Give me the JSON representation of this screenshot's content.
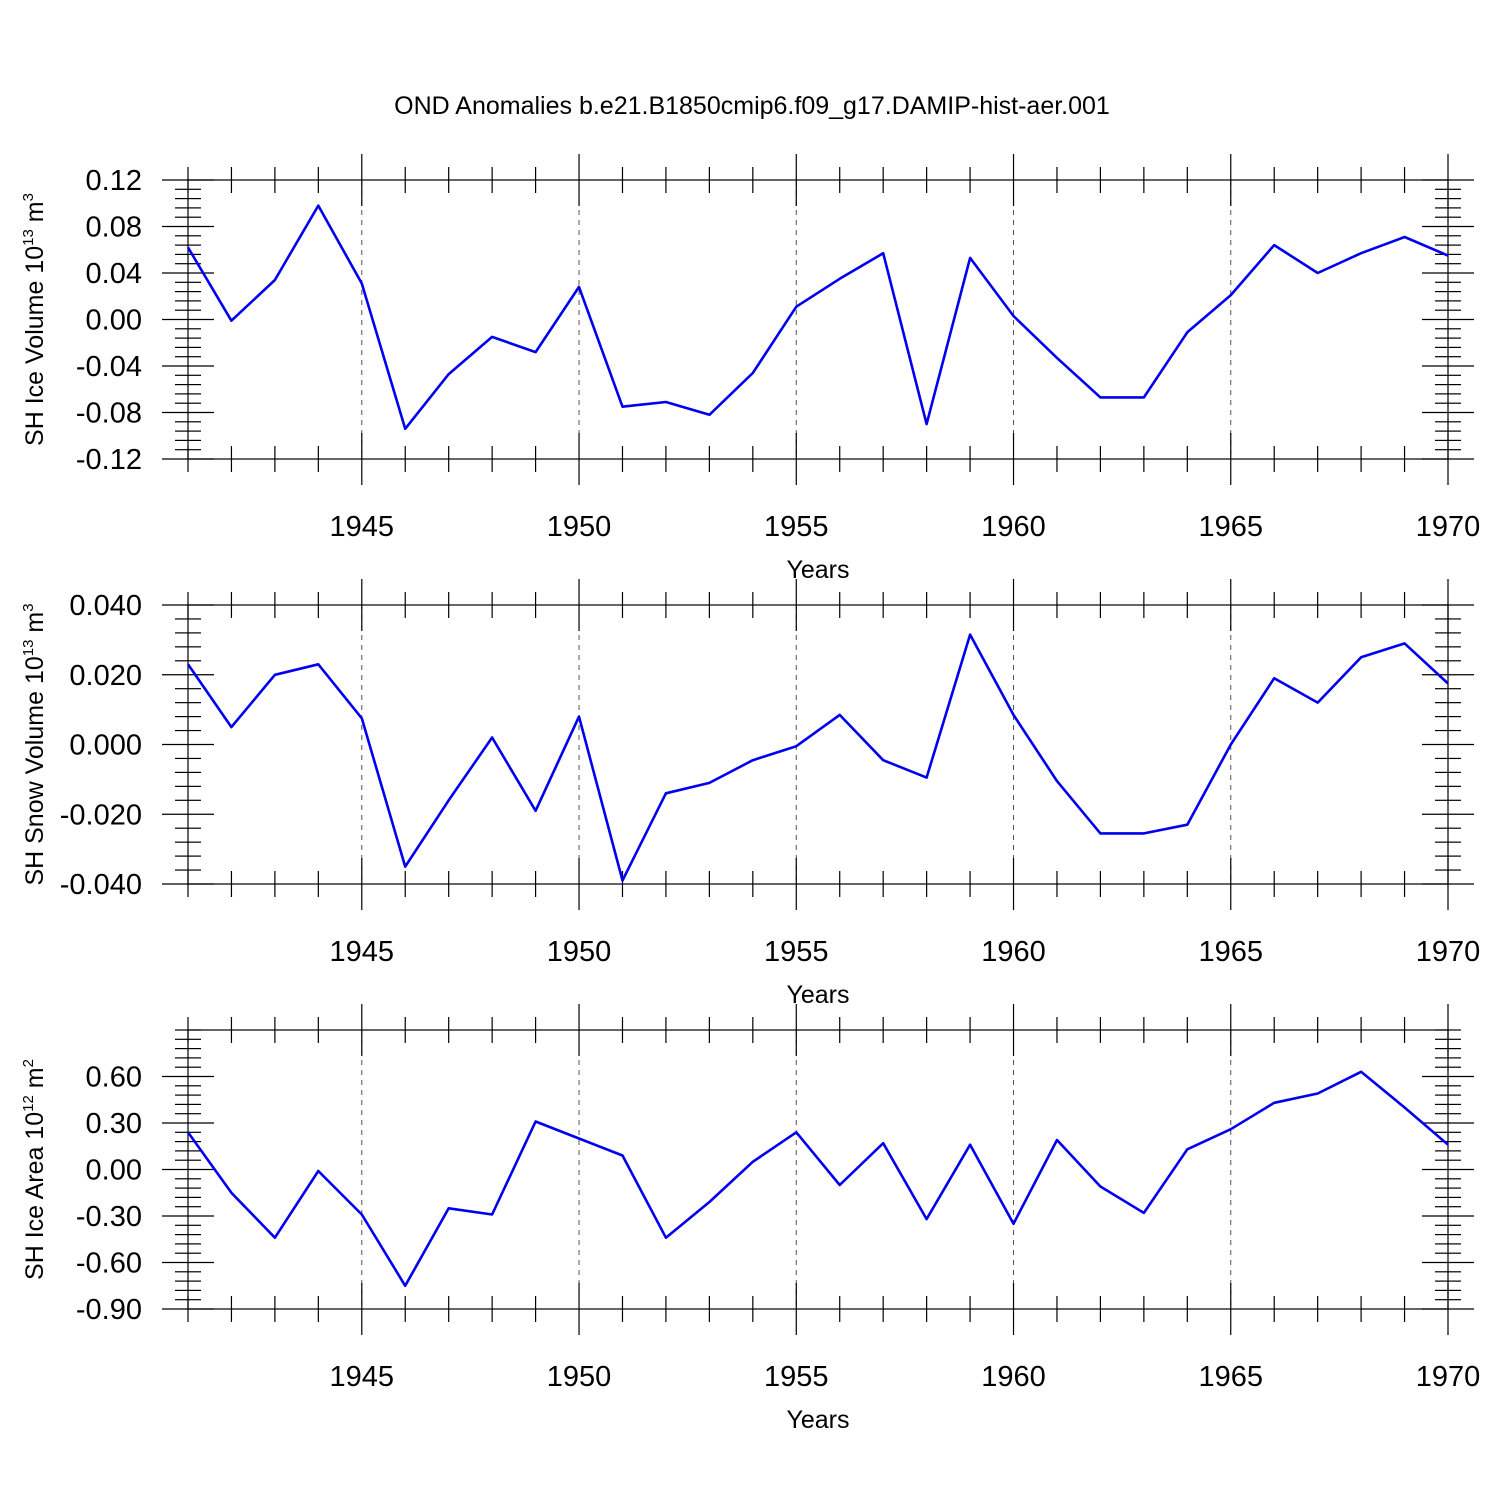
{
  "figure": {
    "title": "OND Anomalies b.e21.B1850cmip6.f09_g17.DAMIP-hist-aer.001"
  },
  "chart_data": [
    {
      "type": "line",
      "xlabel": "Years",
      "ylabel": {
        "text": "SH Ice Volume 10",
        "sup": "13",
        "unit": " m",
        "unit_sup": "3"
      },
      "xlim": [
        1941,
        1970
      ],
      "ylim": [
        -0.12,
        0.12
      ],
      "yticks": [
        "0.12",
        "0.08",
        "0.04",
        "0.00",
        "-0.04",
        "-0.08",
        "-0.12"
      ],
      "ytick_values": [
        0.12,
        0.08,
        0.04,
        0.0,
        -0.04,
        -0.08,
        -0.12
      ],
      "ytick_minor_step": 0.008,
      "xticks": [
        "1945",
        "1950",
        "1955",
        "1960",
        "1965",
        "1970"
      ],
      "xtick_values": [
        1945,
        1950,
        1955,
        1960,
        1965,
        1970
      ],
      "grid": "vertical dashed at labeled years",
      "color": "#0000ee",
      "series": [
        {
          "x": [
            1941,
            1942,
            1943,
            1944,
            1945,
            1946,
            1947,
            1948,
            1949,
            1950,
            1951,
            1952,
            1953,
            1954,
            1955,
            1956,
            1957,
            1958,
            1959,
            1960,
            1961,
            1962,
            1963,
            1964,
            1965,
            1966,
            1967,
            1968,
            1969,
            1970
          ],
          "values": [
            0.062,
            -0.001,
            0.034,
            0.098,
            0.031,
            -0.094,
            -0.047,
            -0.015,
            -0.028,
            0.028,
            -0.075,
            -0.071,
            -0.082,
            -0.046,
            0.011,
            0.035,
            0.057,
            -0.09,
            0.053,
            0.003,
            -0.033,
            -0.067,
            -0.067,
            -0.011,
            0.021,
            0.064,
            0.04,
            0.057,
            0.071,
            0.055
          ]
        }
      ]
    },
    {
      "type": "line",
      "xlabel": "Years",
      "ylabel": {
        "text": "SH Snow Volume 10",
        "sup": "13",
        "unit": " m",
        "unit_sup": "3"
      },
      "xlim": [
        1941,
        1970
      ],
      "ylim": [
        -0.04,
        0.04
      ],
      "yticks": [
        "0.040",
        "0.020",
        "0.000",
        "-0.020",
        "-0.040"
      ],
      "ytick_values": [
        0.04,
        0.02,
        0.0,
        -0.02,
        -0.04
      ],
      "ytick_minor_step": 0.004,
      "xticks": [
        "1945",
        "1950",
        "1955",
        "1960",
        "1965",
        "1970"
      ],
      "xtick_values": [
        1945,
        1950,
        1955,
        1960,
        1965,
        1970
      ],
      "grid": "vertical dashed at labeled years",
      "color": "#0000ee",
      "series": [
        {
          "x": [
            1941,
            1942,
            1943,
            1944,
            1945,
            1946,
            1947,
            1948,
            1949,
            1950,
            1951,
            1952,
            1953,
            1954,
            1955,
            1956,
            1957,
            1958,
            1959,
            1960,
            1961,
            1962,
            1963,
            1964,
            1965,
            1966,
            1967,
            1968,
            1969,
            1970
          ],
          "values": [
            0.023,
            0.005,
            0.02,
            0.023,
            0.0075,
            -0.035,
            -0.016,
            0.002,
            -0.019,
            0.008,
            -0.039,
            -0.014,
            -0.011,
            -0.0045,
            -0.0005,
            0.0085,
            -0.0045,
            -0.0095,
            0.0315,
            0.0085,
            -0.0105,
            -0.0255,
            -0.0255,
            -0.023,
            0.0,
            0.019,
            0.012,
            0.025,
            0.029,
            0.0175
          ]
        }
      ]
    },
    {
      "type": "line",
      "xlabel": "Years",
      "ylabel": {
        "text": "SH Ice Area 10",
        "sup": "12",
        "unit": " m",
        "unit_sup": "2"
      },
      "xlim": [
        1941,
        1970
      ],
      "ylim": [
        -0.9,
        0.9
      ],
      "yticks": [
        "0.60",
        "0.30",
        "0.00",
        "-0.30",
        "-0.60",
        "-0.90"
      ],
      "ytick_values": [
        0.6,
        0.3,
        0.0,
        -0.3,
        -0.6,
        -0.9
      ],
      "ytick_minor_step": 0.06,
      "xticks": [
        "1945",
        "1950",
        "1955",
        "1960",
        "1965",
        "1970"
      ],
      "xtick_values": [
        1945,
        1950,
        1955,
        1960,
        1965,
        1970
      ],
      "grid": "vertical dashed at labeled years",
      "color": "#0000ee",
      "series": [
        {
          "x": [
            1941,
            1942,
            1943,
            1944,
            1945,
            1946,
            1947,
            1948,
            1949,
            1950,
            1951,
            1952,
            1953,
            1954,
            1955,
            1956,
            1957,
            1958,
            1959,
            1960,
            1961,
            1962,
            1963,
            1964,
            1965,
            1966,
            1967,
            1968,
            1969,
            1970
          ],
          "values": [
            0.24,
            -0.15,
            -0.44,
            -0.01,
            -0.29,
            -0.75,
            -0.25,
            -0.29,
            0.31,
            0.2,
            0.09,
            -0.44,
            -0.21,
            0.05,
            0.24,
            -0.1,
            0.17,
            -0.32,
            0.16,
            -0.35,
            0.19,
            -0.11,
            -0.28,
            0.13,
            0.26,
            0.43,
            0.49,
            0.63,
            0.4,
            0.16
          ]
        }
      ]
    }
  ]
}
